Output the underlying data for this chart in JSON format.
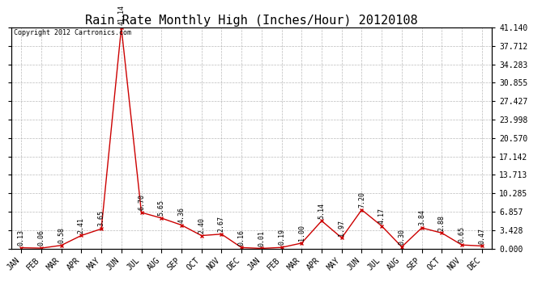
{
  "title": "Rain Rate Monthly High (Inches/Hour) 20120108",
  "copyright": "Copyright 2012 Cartronics.com",
  "x_labels": [
    "JAN",
    "FEB",
    "MAR",
    "APR",
    "MAY",
    "JUN",
    "JUL",
    "AUG",
    "SEP",
    "OCT",
    "NOV",
    "DEC",
    "JAN",
    "FEB",
    "MAR",
    "APR",
    "MAY",
    "JUN",
    "JUL",
    "AUG",
    "SEP",
    "OCT",
    "NOV",
    "DEC"
  ],
  "values": [
    0.13,
    0.06,
    0.58,
    2.41,
    3.65,
    41.14,
    6.7,
    5.65,
    4.36,
    2.4,
    2.67,
    0.16,
    0.01,
    0.19,
    1.0,
    5.14,
    1.97,
    7.2,
    4.17,
    0.3,
    3.84,
    2.88,
    0.65,
    0.47
  ],
  "value_labels": [
    "0.13",
    "0.06",
    "0.58",
    "2.41",
    "3.65",
    "41.14",
    "6.70",
    "5.65",
    "4.36",
    "2.40",
    "2.67",
    "0.16",
    "0.01",
    "0.19",
    "1.00",
    "5.14",
    "1.97",
    "7.20",
    "4.17",
    "0.30",
    "3.84",
    "2.88",
    "0.65",
    "0.47"
  ],
  "line_color": "#cc0000",
  "marker_color": "#cc0000",
  "bg_color": "#ffffff",
  "grid_color": "#aaaaaa",
  "yticks": [
    0.0,
    3.428,
    6.857,
    10.285,
    13.713,
    17.142,
    20.57,
    23.998,
    27.427,
    30.855,
    34.283,
    37.712,
    41.14
  ],
  "ylim_max": 41.14,
  "title_fontsize": 11,
  "tick_fontsize": 7,
  "annot_fontsize": 6,
  "copyright_fontsize": 6
}
